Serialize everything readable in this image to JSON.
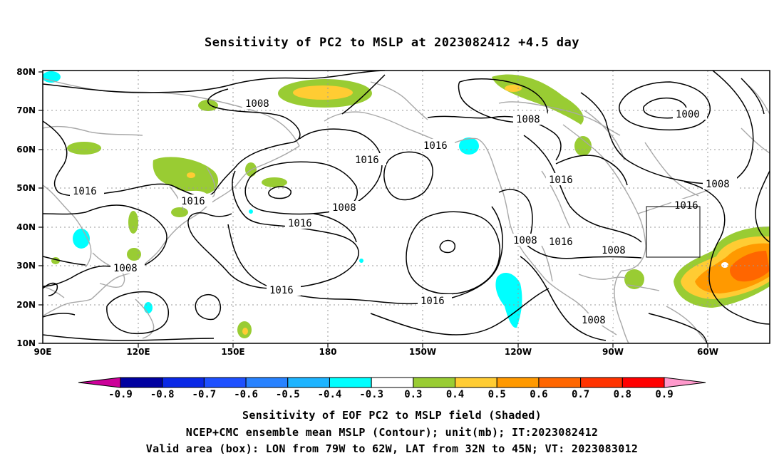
{
  "title": "Sensitivity of PC2 to MSLP at 2023082412 +4.5 day",
  "lat_labels": [
    "80N",
    "70N",
    "60N",
    "50N",
    "40N",
    "30N",
    "20N",
    "10N"
  ],
  "lon_labels": [
    "90E",
    "120E",
    "150E",
    "180",
    "150W",
    "120W",
    "90W",
    "60W"
  ],
  "contour_labels": [
    {
      "text": "1008"
    },
    {
      "text": "1008"
    },
    {
      "text": "1000"
    },
    {
      "text": "1016"
    },
    {
      "text": "1016"
    },
    {
      "text": "1016"
    },
    {
      "text": "1016"
    },
    {
      "text": "1008"
    },
    {
      "text": "1016"
    },
    {
      "text": "1008"
    },
    {
      "text": "1016"
    },
    {
      "text": "1016"
    },
    {
      "text": "1016"
    },
    {
      "text": "1016"
    },
    {
      "text": "1008"
    },
    {
      "text": "1008"
    },
    {
      "text": "1016"
    },
    {
      "text": "1008"
    },
    {
      "text": "1008"
    }
  ],
  "colorbar": {
    "labels": [
      "-0.9",
      "-0.8",
      "-0.7",
      "-0.6",
      "-0.5",
      "-0.4",
      "-0.3",
      "0.3",
      "0.4",
      "0.5",
      "0.6",
      "0.7",
      "0.8",
      "0.9"
    ],
    "colors": [
      "#0000a0",
      "#0a28e6",
      "#1e50ff",
      "#2882ff",
      "#1eb4ff",
      "#00ffff",
      "#ffffff",
      "#99cc33",
      "#ffcc33",
      "#ff9900",
      "#ff6600",
      "#ff3300",
      "#ff0000"
    ],
    "left_arrow_color": "#cc0099",
    "right_arrow_color": "#ff99cc"
  },
  "captions": [
    "Sensitivity of EOF PC2 to MSLP field (Shaded)",
    "NCEP+CMC ensemble mean MSLP (Contour); unit(mb); IT:2023082412",
    "Valid area (box): LON from 79W to 62W, LAT from 32N to 45N; VT: 2023083012"
  ]
}
